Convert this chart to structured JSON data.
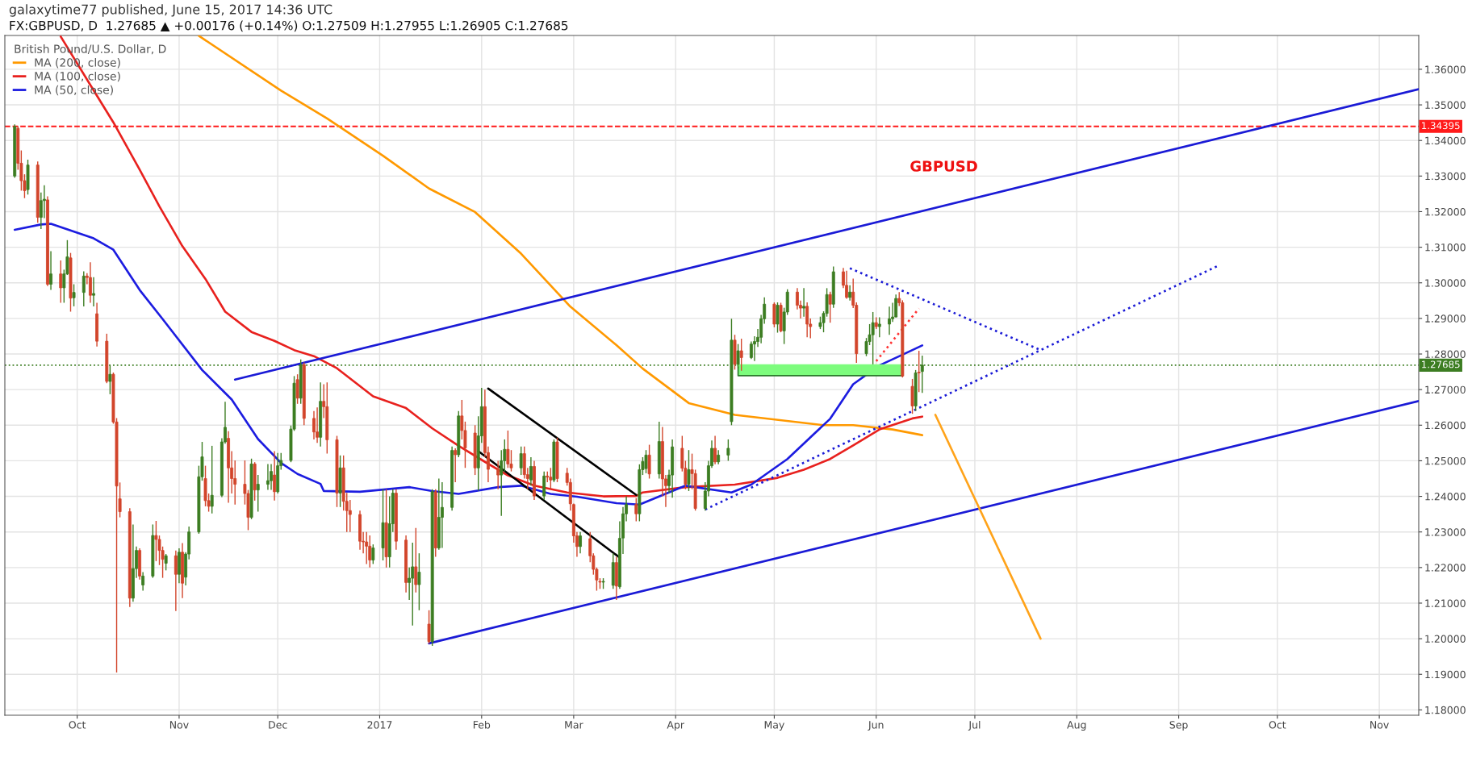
{
  "chart_data": {
    "type": "candlestick",
    "title": "galaxytime77 published, June 15, 2017 14:36 UTC",
    "subtitle": "FX:GBPUSD, D  1.27685 ▲ +0.00176 (+0.14%) O:1.27509 H:1.27955 L:1.26905 C:1.27685",
    "legend_title": "British Pound/U.S. Dollar, D",
    "annotations": [
      "GBPUSD"
    ],
    "x": [
      "2016-09-12",
      "2016-09-13",
      "2016-09-14",
      "2016-09-15",
      "2016-09-16",
      "2016-09-19",
      "2016-09-20",
      "2016-09-21",
      "2016-09-22",
      "2016-09-23",
      "2016-09-26",
      "2016-09-27",
      "2016-09-28",
      "2016-09-29",
      "2016-09-30",
      "2016-10-03",
      "2016-10-04",
      "2016-10-05",
      "2016-10-06",
      "2016-10-07",
      "2016-10-10",
      "2016-10-11",
      "2016-10-12",
      "2016-10-13",
      "2016-10-14",
      "2016-10-17",
      "2016-10-18",
      "2016-10-19",
      "2016-10-20",
      "2016-10-21",
      "2016-10-24",
      "2016-10-25",
      "2016-10-26",
      "2016-10-27",
      "2016-10-28",
      "2016-10-31",
      "2016-11-01",
      "2016-11-02",
      "2016-11-03",
      "2016-11-04",
      "2016-11-07",
      "2016-11-08",
      "2016-11-09",
      "2016-11-10",
      "2016-11-11",
      "2016-11-14",
      "2016-11-15",
      "2016-11-16",
      "2016-11-17",
      "2016-11-18",
      "2016-11-21",
      "2016-11-22",
      "2016-11-23",
      "2016-11-24",
      "2016-11-25",
      "2016-11-28",
      "2016-11-29",
      "2016-11-30",
      "2016-12-01",
      "2016-12-02",
      "2016-12-05",
      "2016-12-06",
      "2016-12-07",
      "2016-12-08",
      "2016-12-09",
      "2016-12-12",
      "2016-12-13",
      "2016-12-14",
      "2016-12-15",
      "2016-12-16",
      "2016-12-19",
      "2016-12-20",
      "2016-12-21",
      "2016-12-22",
      "2016-12-23",
      "2016-12-26",
      "2016-12-27",
      "2016-12-28",
      "2016-12-29",
      "2016-12-30",
      "2017-01-02",
      "2017-01-03",
      "2017-01-04",
      "2017-01-05",
      "2017-01-06",
      "2017-01-09",
      "2017-01-10",
      "2017-01-11",
      "2017-01-12",
      "2017-01-13",
      "2017-01-16",
      "2017-01-17",
      "2017-01-18",
      "2017-01-19",
      "2017-01-20",
      "2017-01-23",
      "2017-01-24",
      "2017-01-25",
      "2017-01-26",
      "2017-01-27",
      "2017-01-30",
      "2017-01-31",
      "2017-02-01",
      "2017-02-02",
      "2017-02-03",
      "2017-02-06",
      "2017-02-07",
      "2017-02-08",
      "2017-02-09",
      "2017-02-10",
      "2017-02-13",
      "2017-02-14",
      "2017-02-15",
      "2017-02-16",
      "2017-02-17",
      "2017-02-20",
      "2017-02-21",
      "2017-02-22",
      "2017-02-23",
      "2017-02-24",
      "2017-02-27",
      "2017-02-28",
      "2017-03-01",
      "2017-03-02",
      "2017-03-03",
      "2017-03-06",
      "2017-03-07",
      "2017-03-08",
      "2017-03-09",
      "2017-03-10",
      "2017-03-13",
      "2017-03-14",
      "2017-03-15",
      "2017-03-16",
      "2017-03-17",
      "2017-03-20",
      "2017-03-21",
      "2017-03-22",
      "2017-03-23",
      "2017-03-24",
      "2017-03-27",
      "2017-03-28",
      "2017-03-29",
      "2017-03-30",
      "2017-03-31",
      "2017-04-03",
      "2017-04-04",
      "2017-04-05",
      "2017-04-06",
      "2017-04-07",
      "2017-04-10",
      "2017-04-11",
      "2017-04-12",
      "2017-04-13",
      "2017-04-14",
      "2017-04-17",
      "2017-04-18",
      "2017-04-19",
      "2017-04-20",
      "2017-04-21",
      "2017-04-24",
      "2017-04-25",
      "2017-04-26",
      "2017-04-27",
      "2017-04-28",
      "2017-05-01",
      "2017-05-02",
      "2017-05-03",
      "2017-05-04",
      "2017-05-05",
      "2017-05-08",
      "2017-05-09",
      "2017-05-10",
      "2017-05-11",
      "2017-05-12",
      "2017-05-15",
      "2017-05-16",
      "2017-05-17",
      "2017-05-18",
      "2017-05-19",
      "2017-05-22",
      "2017-05-23",
      "2017-05-24",
      "2017-05-25",
      "2017-05-26",
      "2017-05-29",
      "2017-05-30",
      "2017-05-31",
      "2017-06-01",
      "2017-06-02",
      "2017-06-05",
      "2017-06-06",
      "2017-06-07",
      "2017-06-08",
      "2017-06-09",
      "2017-06-12",
      "2017-06-13",
      "2017-06-14",
      "2017-06-15"
    ],
    "ohlc": [
      [
        1.33,
        1.3445,
        1.3295,
        1.3439
      ],
      [
        1.3434,
        1.344,
        1.3318,
        1.3336
      ],
      [
        1.3336,
        1.3372,
        1.3259,
        1.3287
      ],
      [
        1.3287,
        1.3305,
        1.3238,
        1.3259
      ],
      [
        1.3262,
        1.3346,
        1.3248,
        1.3331
      ],
      [
        1.3331,
        1.3341,
        1.3169,
        1.3184
      ],
      [
        1.3184,
        1.3254,
        1.3151,
        1.3231
      ],
      [
        1.3231,
        1.3274,
        1.3182,
        1.3235
      ],
      [
        1.3233,
        1.3243,
        1.2991,
        1.2996
      ],
      [
        1.2996,
        1.3089,
        1.298,
        1.3025
      ],
      [
        1.3025,
        1.3063,
        1.2944,
        1.2986
      ],
      [
        1.2986,
        1.3037,
        1.2944,
        1.3025
      ],
      [
        1.3025,
        1.312,
        1.3022,
        1.3073
      ],
      [
        1.307,
        1.3084,
        1.2919,
        1.2957
      ],
      [
        1.2958,
        1.2996,
        1.2934,
        1.2973
      ],
      [
        1.2973,
        1.3032,
        1.2934,
        1.3019
      ],
      [
        1.3019,
        1.3027,
        1.2996,
        1.3015
      ],
      [
        1.3015,
        1.3058,
        1.2944,
        1.2965
      ],
      [
        1.2965,
        1.3016,
        1.2934,
        1.297
      ],
      [
        1.2913,
        1.2944,
        1.2821,
        1.2836
      ],
      [
        1.2836,
        1.2857,
        1.2718,
        1.2723
      ],
      [
        1.2723,
        1.2769,
        1.2687,
        1.2743
      ],
      [
        1.2743,
        1.2748,
        1.2604,
        1.2609
      ],
      [
        1.2609,
        1.262,
        1.1905,
        1.2429
      ],
      [
        1.2393,
        1.2439,
        1.2341,
        1.2357
      ],
      [
        1.2357,
        1.2367,
        1.2089,
        1.2114
      ],
      [
        1.2114,
        1.2321,
        1.2104,
        1.2197
      ],
      [
        1.2197,
        1.2259,
        1.2171,
        1.2248
      ],
      [
        1.2248,
        1.2254,
        1.2166,
        1.2176
      ],
      [
        1.2151,
        1.2187,
        1.2135,
        1.2176
      ],
      [
        1.2176,
        1.2321,
        1.2171,
        1.229
      ],
      [
        1.229,
        1.2331,
        1.2218,
        1.2279
      ],
      [
        1.2279,
        1.229,
        1.2207,
        1.2248
      ],
      [
        1.2248,
        1.2259,
        1.2171,
        1.2223
      ],
      [
        1.2212,
        1.2238,
        1.2192,
        1.2233
      ],
      [
        1.2233,
        1.2248,
        1.2078,
        1.2181
      ],
      [
        1.2181,
        1.2254,
        1.2156,
        1.2243
      ],
      [
        1.2243,
        1.2269,
        1.2114,
        1.2156
      ],
      [
        1.2173,
        1.2243,
        1.215,
        1.2238
      ],
      [
        1.2238,
        1.2315,
        1.2223,
        1.23
      ],
      [
        1.23,
        1.2486,
        1.2295,
        1.2455
      ],
      [
        1.2455,
        1.2553,
        1.2444,
        1.2511
      ],
      [
        1.245,
        1.2486,
        1.2372,
        1.2388
      ],
      [
        1.2388,
        1.2408,
        1.2357,
        1.2372
      ],
      [
        1.2372,
        1.2542,
        1.2352,
        1.2403
      ],
      [
        1.2403,
        1.2563,
        1.2398,
        1.2553
      ],
      [
        1.2553,
        1.2666,
        1.2548,
        1.2594
      ],
      [
        1.2563,
        1.2583,
        1.2382,
        1.248
      ],
      [
        1.248,
        1.2527,
        1.2408,
        1.245
      ],
      [
        1.245,
        1.2501,
        1.2377,
        1.2434
      ],
      [
        1.2434,
        1.2501,
        1.2377,
        1.2408
      ],
      [
        1.2408,
        1.2418,
        1.2305,
        1.2341
      ],
      [
        1.2341,
        1.2506,
        1.2336,
        1.2491
      ],
      [
        1.2491,
        1.2496,
        1.2388,
        1.2418
      ],
      [
        1.2418,
        1.246,
        1.2357,
        1.2434
      ],
      [
        1.2434,
        1.2491,
        1.2418,
        1.2444
      ],
      [
        1.2444,
        1.2491,
        1.2418,
        1.247
      ],
      [
        1.246,
        1.2527,
        1.2388,
        1.2413
      ],
      [
        1.2413,
        1.2522,
        1.2408,
        1.2486
      ],
      [
        1.2486,
        1.2522,
        1.2475,
        1.2501
      ],
      [
        1.2501,
        1.2599,
        1.2496,
        1.2589
      ],
      [
        1.2589,
        1.2738,
        1.2584,
        1.2718
      ],
      [
        1.2728,
        1.2743,
        1.266,
        1.2676
      ],
      [
        1.2676,
        1.2785,
        1.266,
        1.277
      ],
      [
        1.277,
        1.2776,
        1.26,
        1.2619
      ],
      [
        1.2619,
        1.264,
        1.256,
        1.2581
      ],
      [
        1.2581,
        1.265,
        1.255,
        1.2566
      ],
      [
        1.2566,
        1.272,
        1.254,
        1.2667
      ],
      [
        1.2667,
        1.2715,
        1.262,
        1.2652
      ],
      [
        1.2652,
        1.272,
        1.252,
        1.2559
      ],
      [
        1.2559,
        1.257,
        1.237,
        1.2409
      ],
      [
        1.2409,
        1.2515,
        1.237,
        1.248
      ],
      [
        1.248,
        1.2515,
        1.236,
        1.2386
      ],
      [
        1.2386,
        1.241,
        1.23,
        1.236
      ],
      [
        1.236,
        1.239,
        1.23,
        1.2349
      ],
      [
        1.2349,
        1.236,
        1.225,
        1.2274
      ],
      [
        1.2274,
        1.23,
        1.224,
        1.2272
      ],
      [
        1.2272,
        1.23,
        1.221,
        1.226
      ],
      [
        1.226,
        1.229,
        1.22,
        1.2221
      ],
      [
        1.2221,
        1.2265,
        1.221,
        1.2255
      ],
      [
        1.2255,
        1.242,
        1.222,
        1.2326
      ],
      [
        1.2326,
        1.242,
        1.22,
        1.223
      ],
      [
        1.223,
        1.24,
        1.22,
        1.2323
      ],
      [
        1.2323,
        1.242,
        1.23,
        1.2409
      ],
      [
        1.2409,
        1.242,
        1.225,
        1.2274
      ],
      [
        1.2277,
        1.229,
        1.213,
        1.2158
      ],
      [
        1.2158,
        1.22,
        1.2109,
        1.217
      ],
      [
        1.217,
        1.227,
        1.2037,
        1.2202
      ],
      [
        1.2202,
        1.2311,
        1.213,
        1.2152
      ],
      [
        1.2152,
        1.224,
        1.208,
        1.2187
      ],
      [
        1.2041,
        1.208,
        1.1986,
        1.1992
      ],
      [
        1.1992,
        1.242,
        1.198,
        1.2413
      ],
      [
        1.2413,
        1.242,
        1.223,
        1.2255
      ],
      [
        1.2255,
        1.245,
        1.225,
        1.2341
      ],
      [
        1.2341,
        1.244,
        1.2255,
        1.2369
      ],
      [
        1.2369,
        1.254,
        1.236,
        1.2529
      ],
      [
        1.2529,
        1.2535,
        1.244,
        1.2517
      ],
      [
        1.2517,
        1.264,
        1.251,
        1.2626
      ],
      [
        1.2626,
        1.2671,
        1.256,
        1.2585
      ],
      [
        1.2585,
        1.261,
        1.248,
        1.2536
      ],
      [
        1.2578,
        1.26,
        1.246,
        1.248
      ],
      [
        1.248,
        1.2625,
        1.2416,
        1.257
      ],
      [
        1.257,
        1.2705,
        1.255,
        1.2652
      ],
      [
        1.2652,
        1.27,
        1.251,
        1.2523
      ],
      [
        1.2523,
        1.254,
        1.244,
        1.2476
      ],
      [
        1.2476,
        1.25,
        1.242,
        1.246
      ],
      [
        1.246,
        1.253,
        1.2345,
        1.25
      ],
      [
        1.25,
        1.256,
        1.247,
        1.2532
      ],
      [
        1.2532,
        1.2585,
        1.248,
        1.2491
      ],
      [
        1.2491,
        1.253,
        1.247,
        1.248
      ],
      [
        1.248,
        1.254,
        1.246,
        1.252
      ],
      [
        1.252,
        1.254,
        1.245,
        1.2461
      ],
      [
        1.2461,
        1.248,
        1.242,
        1.245
      ],
      [
        1.2446,
        1.251,
        1.243,
        1.2484
      ],
      [
        1.2484,
        1.25,
        1.239,
        1.2401
      ],
      [
        1.2401,
        1.247,
        1.239,
        1.2457
      ],
      [
        1.2457,
        1.247,
        1.244,
        1.2454
      ],
      [
        1.2454,
        1.248,
        1.242,
        1.2446
      ],
      [
        1.2446,
        1.256,
        1.244,
        1.2553
      ],
      [
        1.2553,
        1.2565,
        1.244,
        1.245
      ],
      [
        1.2465,
        1.248,
        1.243,
        1.2439
      ],
      [
        1.2439,
        1.245,
        1.236,
        1.2379
      ],
      [
        1.2377,
        1.238,
        1.227,
        1.2289
      ],
      [
        1.2289,
        1.23,
        1.223,
        1.2259
      ],
      [
        1.2259,
        1.23,
        1.224,
        1.2289
      ],
      [
        1.2281,
        1.23,
        1.2215,
        1.2233
      ],
      [
        1.2233,
        1.224,
        1.218,
        1.2195
      ],
      [
        1.2195,
        1.22,
        1.2135,
        1.2165
      ],
      [
        1.2161,
        1.217,
        1.214,
        1.2159
      ],
      [
        1.2159,
        1.217,
        1.214,
        1.2161
      ],
      [
        1.215,
        1.224,
        1.214,
        1.2214
      ],
      [
        1.2214,
        1.223,
        1.2109,
        1.2148
      ],
      [
        1.2146,
        1.233,
        1.214,
        1.2282
      ],
      [
        1.2283,
        1.237,
        1.2238,
        1.2351
      ],
      [
        1.2351,
        1.24,
        1.233,
        1.2377
      ],
      [
        1.2377,
        1.2395,
        1.233,
        1.2351
      ],
      [
        1.2351,
        1.249,
        1.233,
        1.2475
      ],
      [
        1.2475,
        1.251,
        1.246,
        1.2498
      ],
      [
        1.2478,
        1.253,
        1.2465,
        1.2516
      ],
      [
        1.2516,
        1.2545,
        1.245,
        1.2463
      ],
      [
        1.2463,
        1.261,
        1.245,
        1.2554
      ],
      [
        1.2554,
        1.2595,
        1.24,
        1.2449
      ],
      [
        1.2449,
        1.246,
        1.237,
        1.243
      ],
      [
        1.243,
        1.2475,
        1.241,
        1.246
      ],
      [
        1.246,
        1.256,
        1.2396,
        1.2539
      ],
      [
        1.2535,
        1.257,
        1.247,
        1.2479
      ],
      [
        1.2479,
        1.25,
        1.242,
        1.2434
      ],
      [
        1.2434,
        1.253,
        1.2415,
        1.2475
      ],
      [
        1.2475,
        1.252,
        1.242,
        1.2464
      ],
      [
        1.2464,
        1.2475,
        1.236,
        1.2366
      ],
      [
        1.2366,
        1.244,
        1.236,
        1.2415
      ],
      [
        1.2415,
        1.25,
        1.24,
        1.2486
      ],
      [
        1.2486,
        1.2557,
        1.248,
        1.2535
      ],
      [
        1.2535,
        1.257,
        1.249,
        1.2497
      ],
      [
        1.2497,
        1.253,
        1.249,
        1.2516
      ],
      [
        1.2516,
        1.256,
        1.25,
        1.2535
      ],
      [
        1.261,
        1.2899,
        1.26,
        1.2839
      ],
      [
        1.2839,
        1.2854,
        1.2756,
        1.2771
      ],
      [
        1.2771,
        1.2828,
        1.276,
        1.2809
      ],
      [
        1.2809,
        1.2843,
        1.2753,
        1.279
      ],
      [
        1.279,
        1.2835,
        1.2786,
        1.2828
      ],
      [
        1.2828,
        1.285,
        1.278,
        1.2835
      ],
      [
        1.2835,
        1.287,
        1.282,
        1.2847
      ],
      [
        1.2847,
        1.291,
        1.283,
        1.2899
      ],
      [
        1.2899,
        1.2959,
        1.2885,
        1.294
      ],
      [
        1.294,
        1.2945,
        1.2875,
        1.2884
      ],
      [
        1.2884,
        1.2945,
        1.286,
        1.2937
      ],
      [
        1.2937,
        1.2944,
        1.2861,
        1.2865
      ],
      [
        1.2865,
        1.293,
        1.2828,
        1.2918
      ],
      [
        1.2918,
        1.2982,
        1.291,
        1.2974
      ],
      [
        1.2974,
        1.2985,
        1.2925,
        1.2937
      ],
      [
        1.2937,
        1.295,
        1.29,
        1.2929
      ],
      [
        1.2929,
        1.2985,
        1.2905,
        1.2934
      ],
      [
        1.2934,
        1.2945,
        1.2847,
        1.2884
      ],
      [
        1.2884,
        1.29,
        1.2844,
        1.2877
      ],
      [
        1.2877,
        1.2905,
        1.287,
        1.2888
      ],
      [
        1.2888,
        1.292,
        1.2861,
        1.2914
      ],
      [
        1.2914,
        1.2985,
        1.2905,
        1.2967
      ],
      [
        1.2967,
        1.2975,
        1.2888,
        1.294
      ],
      [
        1.294,
        1.3046,
        1.293,
        1.3031
      ],
      [
        1.3031,
        1.3042,
        1.2985,
        1.2993
      ],
      [
        1.2993,
        1.3034,
        1.2955,
        1.2959
      ],
      [
        1.2959,
        1.2993,
        1.295,
        1.2974
      ],
      [
        1.2974,
        1.3012,
        1.2929,
        1.2937
      ],
      [
        1.2937,
        1.2945,
        1.2775,
        1.2801
      ],
      [
        1.2801,
        1.2845,
        1.2794,
        1.2835
      ],
      [
        1.2835,
        1.2884,
        1.2825,
        1.2854
      ],
      [
        1.2854,
        1.2918,
        1.2771,
        1.2888
      ],
      [
        1.2888,
        1.2903,
        1.287,
        1.2877
      ],
      [
        1.2877,
        1.2903,
        1.2847,
        1.2884
      ],
      [
        1.2884,
        1.2933,
        1.2854,
        1.2899
      ],
      [
        1.2899,
        1.2944,
        1.289,
        1.2904
      ],
      [
        1.2904,
        1.2967,
        1.2903,
        1.2956
      ],
      [
        1.2956,
        1.2974,
        1.2935,
        1.2944
      ],
      [
        1.2944,
        1.2951,
        1.2734,
        1.2738
      ],
      [
        1.2709,
        1.273,
        1.2632,
        1.2654
      ],
      [
        1.2654,
        1.2755,
        1.264,
        1.2747
      ],
      [
        1.2749,
        1.2809,
        1.2693,
        1.2747
      ],
      [
        1.27509,
        1.27955,
        1.26905,
        1.27685
      ]
    ],
    "colors": [
      "#3c7d22",
      "#d2452b",
      "#d2452b",
      "#d2452b",
      "#3c7d22",
      "#d2452b",
      "#3c7d22",
      "#3c7d22",
      "#d2452b",
      "#3c7d22",
      "#d2452b",
      "#3c7d22",
      "#3c7d22",
      "#d2452b",
      "#3c7d22",
      "#3c7d22",
      "#d2452b",
      "#d2452b",
      "#3c7d22",
      "#d2452b",
      "#d2452b",
      "#3c7d22",
      "#d2452b",
      "#d2452b",
      "#d2452b",
      "#d2452b",
      "#3c7d22",
      "#3c7d22",
      "#d2452b",
      "#3c7d22",
      "#3c7d22",
      "#d2452b",
      "#d2452b",
      "#d2452b",
      "#3c7d22",
      "#d2452b",
      "#3c7d22",
      "#d2452b",
      "#3c7d22",
      "#3c7d22",
      "#3c7d22",
      "#3c7d22",
      "#d2452b",
      "#d2452b",
      "#3c7d22",
      "#3c7d22",
      "#3c7d22",
      "#d2452b",
      "#d2452b",
      "#d2452b",
      "#d2452b",
      "#d2452b",
      "#3c7d22",
      "#d2452b",
      "#3c7d22",
      "#3c7d22",
      "#3c7d22",
      "#d2452b",
      "#3c7d22",
      "#3c7d22",
      "#3c7d22",
      "#3c7d22",
      "#d2452b",
      "#3c7d22",
      "#d2452b",
      "#d2452b",
      "#d2452b",
      "#3c7d22",
      "#d2452b",
      "#d2452b",
      "#d2452b",
      "#3c7d22",
      "#d2452b",
      "#d2452b",
      "#d2452b",
      "#d2452b",
      "#d2452b",
      "#d2452b",
      "#d2452b",
      "#3c7d22",
      "#3c7d22",
      "#d2452b",
      "#3c7d22",
      "#3c7d22",
      "#d2452b",
      "#d2452b",
      "#3c7d22",
      "#3c7d22",
      "#d2452b",
      "#3c7d22",
      "#d2452b",
      "#3c7d22",
      "#d2452b",
      "#3c7d22",
      "#3c7d22",
      "#3c7d22",
      "#d2452b",
      "#3c7d22",
      "#d2452b",
      "#d2452b",
      "#d2452b",
      "#3c7d22",
      "#3c7d22",
      "#d2452b",
      "#d2452b",
      "#d2452b",
      "#3c7d22",
      "#3c7d22",
      "#d2452b",
      "#d2452b",
      "#3c7d22",
      "#d2452b",
      "#d2452b",
      "#3c7d22",
      "#d2452b",
      "#3c7d22",
      "#d2452b",
      "#d2452b",
      "#3c7d22",
      "#d2452b",
      "#d2452b",
      "#d2452b",
      "#d2452b",
      "#d2452b",
      "#3c7d22",
      "#d2452b",
      "#d2452b",
      "#d2452b",
      "#d2452b",
      "#3c7d22",
      "#3c7d22",
      "#d2452b",
      "#3c7d22",
      "#3c7d22",
      "#3c7d22",
      "#d2452b",
      "#3c7d22",
      "#3c7d22",
      "#3c7d22",
      "#d2452b",
      "#3c7d22",
      "#d2452b",
      "#d2452b",
      "#3c7d22",
      "#3c7d22",
      "#d2452b",
      "#d2452b",
      "#3c7d22",
      "#d2452b",
      "#d2452b",
      "#3c7d22",
      "#3c7d22",
      "#3c7d22",
      "#d2452b",
      "#3c7d22",
      "#3c7d22",
      "#3c7d22",
      "#d2452b",
      "#3c7d22",
      "#d2452b",
      "#3c7d22",
      "#3c7d22",
      "#3c7d22",
      "#3c7d22",
      "#3c7d22",
      "#d2452b",
      "#3c7d22",
      "#d2452b",
      "#3c7d22",
      "#3c7d22",
      "#d2452b",
      "#d2452b",
      "#3c7d22",
      "#d2452b",
      "#d2452b",
      "#3c7d22",
      "#3c7d22",
      "#3c7d22",
      "#d2452b",
      "#3c7d22",
      "#d2452b",
      "#d2452b",
      "#3c7d22",
      "#d2452b",
      "#d2452b",
      "#3c7d22",
      "#3c7d22",
      "#3c7d22",
      "#d2452b",
      "#3c7d22",
      "#3c7d22",
      "#3c7d22",
      "#3c7d22",
      "#d2452b",
      "#d2452b",
      "#d2452b",
      "#3c7d22",
      "#d2452b",
      "#3c7d22"
    ],
    "series": [
      {
        "type": "line",
        "name": "MA (200, close)",
        "color": "#ff9900",
        "x": [
          "2016-11-07",
          "2016-12-02",
          "2016-12-16",
          "2017-01-02",
          "2017-01-16",
          "2017-01-30",
          "2017-02-13",
          "2017-02-28",
          "2017-03-14",
          "2017-03-22",
          "2017-04-05",
          "2017-04-19",
          "2017-05-16",
          "2017-05-25",
          "2017-06-06",
          "2017-06-15"
        ],
        "values": [
          1.3694,
          1.354,
          1.3462,
          1.3357,
          1.3265,
          1.3199,
          1.3082,
          1.2933,
          1.2825,
          1.2759,
          1.2662,
          1.2629,
          1.26,
          1.26,
          1.2588,
          1.2572
        ]
      },
      {
        "type": "line",
        "name": "MA (100, close)",
        "color": "#e8211e",
        "x": [
          "2016-09-26",
          "2016-10-06",
          "2016-10-12",
          "2016-10-20",
          "2016-10-26",
          "2016-11-02",
          "2016-11-09",
          "2016-11-15",
          "2016-11-23",
          "2016-11-30",
          "2016-12-06",
          "2016-12-12",
          "2016-12-19",
          "2016-12-30",
          "2017-01-09",
          "2017-01-17",
          "2017-01-25",
          "2017-02-02",
          "2017-02-09",
          "2017-02-17",
          "2017-02-27",
          "2017-03-10",
          "2017-03-20",
          "2017-03-22",
          "2017-04-04",
          "2017-04-19",
          "2017-05-02",
          "2017-05-10",
          "2017-05-18",
          "2017-05-25",
          "2017-06-02",
          "2017-06-12",
          "2017-06-15"
        ],
        "values": [
          1.3692,
          1.3541,
          1.3451,
          1.3318,
          1.3215,
          1.3103,
          1.3011,
          1.2919,
          1.2862,
          1.2837,
          1.2811,
          1.2794,
          1.276,
          1.2681,
          1.2648,
          1.2591,
          1.2542,
          1.2497,
          1.2459,
          1.243,
          1.2411,
          1.24,
          1.2401,
          1.2411,
          1.2426,
          1.2433,
          1.2452,
          1.2475,
          1.2505,
          1.2543,
          1.2588,
          1.2619,
          1.2624
        ]
      },
      {
        "type": "line",
        "name": "MA (50, close)",
        "color": "#1c1ce0",
        "x": [
          "2016-09-12",
          "2016-09-20",
          "2016-09-23",
          "2016-10-06",
          "2016-10-12",
          "2016-10-20",
          "2016-10-27",
          "2016-11-08",
          "2016-11-17",
          "2016-11-25",
          "2016-12-02",
          "2016-12-07",
          "2016-12-14",
          "2016-12-15",
          "2016-12-26",
          "2017-01-10",
          "2017-01-17",
          "2017-01-25",
          "2017-02-06",
          "2017-02-13",
          "2017-02-22",
          "2017-03-02",
          "2017-03-14",
          "2017-03-21",
          "2017-04-04",
          "2017-04-18",
          "2017-04-24",
          "2017-05-05",
          "2017-05-18",
          "2017-05-25",
          "2017-06-02",
          "2017-06-09",
          "2017-06-15"
        ],
        "values": [
          1.3149,
          1.3164,
          1.3166,
          1.3125,
          1.3093,
          1.298,
          1.2898,
          1.2755,
          1.2672,
          1.2561,
          1.2494,
          1.2463,
          1.2435,
          1.2415,
          1.2413,
          1.2426,
          1.2415,
          1.2407,
          1.2426,
          1.243,
          1.2407,
          1.2399,
          1.2381,
          1.2377,
          1.243,
          1.2411,
          1.2433,
          1.2505,
          1.2618,
          1.2715,
          1.2768,
          1.2798,
          1.2824
        ]
      },
      {
        "type": "line",
        "color": "#1a1ad6",
        "x": [
          "2016-11-18",
          "2017-11-13"
        ],
        "values": [
          1.2728,
          1.3544
        ]
      },
      {
        "type": "line",
        "color": "#1a1ad6",
        "x": [
          "2017-01-16",
          "2017-11-13"
        ],
        "values": [
          1.1987,
          1.2668
        ]
      },
      {
        "type": "line",
        "color": "#000000",
        "x": [
          "2017-02-03",
          "2017-03-20"
        ],
        "values": [
          1.2703,
          1.2404
        ]
      },
      {
        "type": "line",
        "color": "#000000",
        "x": [
          "2017-01-31",
          "2017-03-15"
        ],
        "values": [
          1.2527,
          1.2228
        ]
      },
      {
        "type": "line",
        "color": "#1a1ad6",
        "line_style": "dotted",
        "x": [
          "2017-04-10",
          "2017-09-13"
        ],
        "values": [
          1.2363,
          1.3048
        ]
      },
      {
        "type": "line",
        "color": "#1a1ad6",
        "line_style": "dotted",
        "x": [
          "2017-05-24",
          "2017-07-21"
        ],
        "values": [
          1.3041,
          1.2811
        ]
      },
      {
        "type": "line",
        "color": "#ff3333",
        "line_style": "dotted",
        "x": [
          "2017-06-01",
          "2017-06-14"
        ],
        "values": [
          1.278,
          1.2928
        ]
      },
      {
        "type": "line",
        "color": "#ffa31a",
        "x": [
          "2017-07-21",
          "2017-06-19"
        ],
        "values": [
          1.2,
          1.2629
        ]
      },
      {
        "type": "line",
        "color": "#7dfc7d",
        "x": [
          "2017-04-20",
          "2017-06-09"
        ],
        "values": [
          1.2768,
          1.2768
        ],
        "lower": [
          1.2739,
          1.2739
        ],
        "upper": [
          1.2768,
          1.2768
        ]
      }
    ],
    "ref_lines": [
      {
        "axis": "y",
        "value": 1.34395,
        "label": "1.34395",
        "color": "#ff1a1a",
        "line_style": "dashed"
      },
      {
        "axis": "y",
        "value": 1.27685,
        "label": "1.27685",
        "color": "#3c7d22",
        "line_style": "dotted"
      }
    ],
    "xlim": [
      "2016-09-09",
      "2017-11-13"
    ],
    "ylim": [
      1.1785,
      1.3695
    ],
    "xticks": [
      {
        "value": "2016-10-01",
        "label": "Oct"
      },
      {
        "value": "2016-11-01",
        "label": "Nov"
      },
      {
        "value": "2016-12-01",
        "label": "Dec"
      },
      {
        "value": "2017-01-01",
        "label": "2017"
      },
      {
        "value": "2017-02-01",
        "label": "Feb"
      },
      {
        "value": "2017-03-01",
        "label": "Mar"
      },
      {
        "value": "2017-04-01",
        "label": "Apr"
      },
      {
        "value": "2017-05-01",
        "label": "May"
      },
      {
        "value": "2017-06-01",
        "label": "Jun"
      },
      {
        "value": "2017-07-01",
        "label": "Jul"
      },
      {
        "value": "2017-08-01",
        "label": "Aug"
      },
      {
        "value": "2017-09-01",
        "label": "Sep"
      },
      {
        "value": "2017-10-01",
        "label": "Oct"
      },
      {
        "value": "2017-11-01",
        "label": "Nov"
      }
    ],
    "yticks": [
      {
        "value": 1.18,
        "label": "1.18000"
      },
      {
        "value": 1.19,
        "label": "1.19000"
      },
      {
        "value": 1.2,
        "label": "1.20000"
      },
      {
        "value": 1.21,
        "label": "1.21000"
      },
      {
        "value": 1.22,
        "label": "1.22000"
      },
      {
        "value": 1.23,
        "label": "1.23000"
      },
      {
        "value": 1.24,
        "label": "1.24000"
      },
      {
        "value": 1.25,
        "label": "1.25000"
      },
      {
        "value": 1.26,
        "label": "1.26000"
      },
      {
        "value": 1.27,
        "label": "1.27000"
      },
      {
        "value": 1.28,
        "label": "1.28000"
      },
      {
        "value": 1.29,
        "label": "1.29000"
      },
      {
        "value": 1.3,
        "label": "1.30000"
      },
      {
        "value": 1.31,
        "label": "1.31000"
      },
      {
        "value": 1.32,
        "label": "1.32000"
      },
      {
        "value": 1.33,
        "label": "1.33000"
      },
      {
        "value": 1.34,
        "label": "1.34000"
      },
      {
        "value": 1.35,
        "label": "1.35000"
      },
      {
        "value": 1.36,
        "label": "1.36000"
      }
    ],
    "grid": true,
    "legend": "top left"
  }
}
